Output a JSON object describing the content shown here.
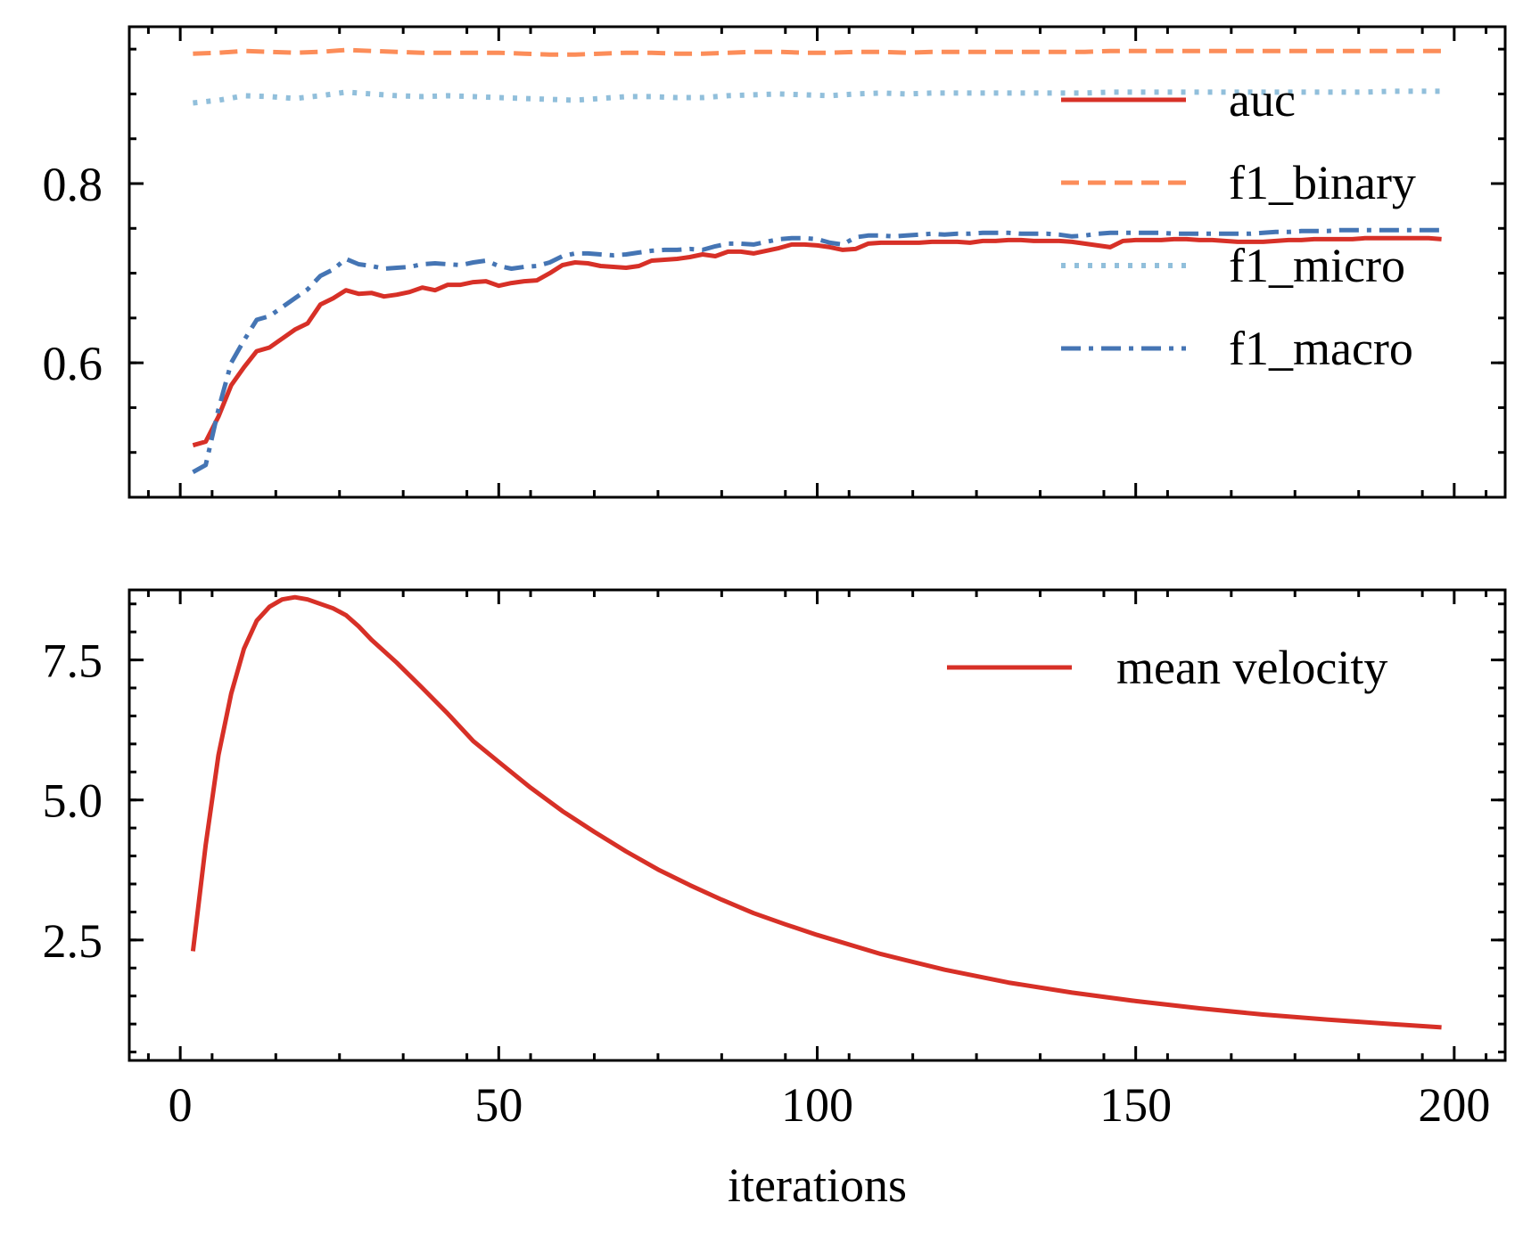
{
  "chart_data": [
    {
      "type": "line",
      "xlim": [
        -8,
        208
      ],
      "ylim": [
        0.45,
        0.975
      ],
      "yticks": [
        0.6,
        0.8
      ],
      "ytick_labels": [
        "0.6",
        "0.8"
      ],
      "xticks": [
        0,
        50,
        100,
        150,
        200
      ],
      "legend_position": "upper right",
      "grid": false,
      "series": [
        {
          "name": "auc",
          "color": "#d73027",
          "style": "solid",
          "x": [
            2,
            4,
            6,
            8,
            10,
            12,
            14,
            16,
            18,
            20,
            22,
            24,
            26,
            28,
            30,
            32,
            34,
            36,
            38,
            40,
            42,
            44,
            46,
            48,
            50,
            52,
            54,
            56,
            58,
            60,
            62,
            64,
            66,
            68,
            70,
            72,
            74,
            76,
            78,
            80,
            82,
            84,
            86,
            88,
            90,
            92,
            94,
            96,
            98,
            100,
            102,
            104,
            106,
            108,
            110,
            112,
            114,
            116,
            118,
            120,
            122,
            124,
            126,
            128,
            130,
            132,
            134,
            136,
            138,
            140,
            142,
            144,
            146,
            148,
            150,
            152,
            154,
            156,
            158,
            160,
            162,
            164,
            166,
            168,
            170,
            172,
            174,
            176,
            178,
            180,
            182,
            184,
            186,
            188,
            190,
            192,
            194,
            196,
            198
          ],
          "values": [
            0.508,
            0.512,
            0.54,
            0.575,
            0.595,
            0.613,
            0.617,
            0.627,
            0.637,
            0.644,
            0.665,
            0.672,
            0.681,
            0.677,
            0.678,
            0.674,
            0.676,
            0.679,
            0.684,
            0.681,
            0.687,
            0.687,
            0.69,
            0.691,
            0.686,
            0.689,
            0.691,
            0.692,
            0.7,
            0.709,
            0.712,
            0.711,
            0.708,
            0.707,
            0.706,
            0.708,
            0.714,
            0.715,
            0.716,
            0.718,
            0.721,
            0.719,
            0.724,
            0.724,
            0.722,
            0.725,
            0.728,
            0.732,
            0.732,
            0.731,
            0.729,
            0.726,
            0.727,
            0.733,
            0.734,
            0.734,
            0.734,
            0.734,
            0.735,
            0.735,
            0.735,
            0.734,
            0.736,
            0.736,
            0.737,
            0.737,
            0.736,
            0.736,
            0.736,
            0.735,
            0.733,
            0.731,
            0.729,
            0.736,
            0.737,
            0.737,
            0.737,
            0.738,
            0.738,
            0.737,
            0.737,
            0.736,
            0.735,
            0.735,
            0.735,
            0.736,
            0.737,
            0.737,
            0.738,
            0.738,
            0.738,
            0.738,
            0.739,
            0.739,
            0.739,
            0.739,
            0.739,
            0.739,
            0.738
          ]
        },
        {
          "name": "f1_binary",
          "color": "#fc8d59",
          "style": "dashed",
          "x": [
            2,
            6,
            10,
            14,
            18,
            22,
            26,
            30,
            34,
            38,
            42,
            46,
            50,
            54,
            58,
            62,
            66,
            70,
            74,
            78,
            82,
            86,
            90,
            94,
            98,
            102,
            106,
            110,
            114,
            118,
            122,
            126,
            130,
            134,
            138,
            142,
            146,
            150,
            154,
            158,
            162,
            166,
            170,
            174,
            178,
            182,
            186,
            190,
            194,
            198
          ],
          "values": [
            0.945,
            0.946,
            0.948,
            0.947,
            0.946,
            0.947,
            0.949,
            0.948,
            0.947,
            0.946,
            0.946,
            0.946,
            0.946,
            0.945,
            0.944,
            0.944,
            0.945,
            0.946,
            0.946,
            0.945,
            0.945,
            0.946,
            0.947,
            0.947,
            0.946,
            0.946,
            0.947,
            0.947,
            0.946,
            0.947,
            0.947,
            0.947,
            0.947,
            0.947,
            0.947,
            0.947,
            0.948,
            0.948,
            0.948,
            0.948,
            0.948,
            0.948,
            0.948,
            0.948,
            0.948,
            0.948,
            0.948,
            0.948,
            0.948,
            0.948
          ]
        },
        {
          "name": "f1_micro",
          "color": "#91bfdb",
          "style": "dotted",
          "x": [
            2,
            6,
            10,
            14,
            18,
            22,
            26,
            30,
            34,
            38,
            42,
            46,
            50,
            54,
            58,
            62,
            66,
            70,
            74,
            78,
            82,
            86,
            90,
            94,
            98,
            102,
            106,
            110,
            114,
            118,
            122,
            126,
            130,
            134,
            138,
            142,
            146,
            150,
            154,
            158,
            162,
            166,
            170,
            174,
            178,
            182,
            186,
            190,
            194,
            198
          ],
          "values": [
            0.89,
            0.893,
            0.898,
            0.897,
            0.895,
            0.898,
            0.902,
            0.9,
            0.898,
            0.897,
            0.898,
            0.897,
            0.896,
            0.895,
            0.894,
            0.893,
            0.895,
            0.897,
            0.897,
            0.896,
            0.896,
            0.898,
            0.899,
            0.9,
            0.899,
            0.898,
            0.9,
            0.901,
            0.9,
            0.901,
            0.901,
            0.901,
            0.901,
            0.901,
            0.901,
            0.901,
            0.902,
            0.902,
            0.902,
            0.902,
            0.902,
            0.902,
            0.902,
            0.902,
            0.902,
            0.902,
            0.902,
            0.903,
            0.903,
            0.903
          ]
        },
        {
          "name": "f1_macro",
          "color": "#4575b4",
          "style": "dashdot",
          "x": [
            2,
            4,
            6,
            8,
            10,
            12,
            14,
            16,
            18,
            20,
            22,
            24,
            26,
            28,
            30,
            32,
            34,
            36,
            38,
            40,
            42,
            44,
            46,
            48,
            50,
            52,
            54,
            56,
            58,
            60,
            62,
            64,
            66,
            68,
            70,
            72,
            74,
            76,
            78,
            80,
            82,
            84,
            86,
            88,
            90,
            92,
            94,
            96,
            98,
            100,
            102,
            104,
            106,
            108,
            110,
            112,
            114,
            116,
            118,
            120,
            122,
            124,
            126,
            128,
            130,
            132,
            134,
            136,
            138,
            140,
            142,
            144,
            146,
            148,
            150,
            152,
            154,
            156,
            158,
            160,
            162,
            164,
            166,
            168,
            170,
            172,
            174,
            176,
            178,
            180,
            182,
            184,
            186,
            188,
            190,
            194,
            198
          ],
          "values": [
            0.478,
            0.486,
            0.548,
            0.6,
            0.625,
            0.648,
            0.652,
            0.662,
            0.672,
            0.682,
            0.697,
            0.704,
            0.716,
            0.71,
            0.708,
            0.705,
            0.706,
            0.707,
            0.71,
            0.711,
            0.71,
            0.709,
            0.712,
            0.714,
            0.708,
            0.705,
            0.707,
            0.708,
            0.712,
            0.719,
            0.722,
            0.722,
            0.721,
            0.72,
            0.721,
            0.723,
            0.725,
            0.726,
            0.726,
            0.727,
            0.726,
            0.73,
            0.733,
            0.733,
            0.732,
            0.735,
            0.738,
            0.739,
            0.739,
            0.738,
            0.734,
            0.732,
            0.74,
            0.742,
            0.742,
            0.741,
            0.742,
            0.743,
            0.744,
            0.743,
            0.744,
            0.744,
            0.745,
            0.745,
            0.745,
            0.744,
            0.744,
            0.744,
            0.743,
            0.741,
            0.742,
            0.744,
            0.745,
            0.745,
            0.745,
            0.745,
            0.745,
            0.744,
            0.744,
            0.744,
            0.744,
            0.744,
            0.744,
            0.744,
            0.745,
            0.746,
            0.746,
            0.747,
            0.747,
            0.747,
            0.748,
            0.748,
            0.748,
            0.748,
            0.748,
            0.748,
            0.748
          ]
        }
      ]
    },
    {
      "type": "line",
      "xlim": [
        -8,
        208
      ],
      "ylim": [
        0.35,
        8.75
      ],
      "yticks": [
        2.5,
        5.0,
        7.5
      ],
      "ytick_labels": [
        "2.5",
        "5.0",
        "7.5"
      ],
      "xticks": [
        0,
        50,
        100,
        150,
        200
      ],
      "xtick_labels": [
        "0",
        "50",
        "100",
        "150",
        "200"
      ],
      "xlabel": "iterations",
      "legend_position": "upper right",
      "grid": false,
      "series": [
        {
          "name": "mean velocity",
          "color": "#d73027",
          "style": "solid",
          "x": [
            2,
            4,
            6,
            8,
            10,
            12,
            14,
            16,
            18,
            20,
            22,
            24,
            26,
            28,
            30,
            34,
            38,
            42,
            46,
            50,
            55,
            60,
            65,
            70,
            75,
            80,
            85,
            90,
            95,
            100,
            110,
            120,
            130,
            140,
            150,
            160,
            170,
            180,
            190,
            198
          ],
          "values": [
            2.3,
            4.2,
            5.8,
            6.9,
            7.7,
            8.2,
            8.45,
            8.58,
            8.62,
            8.58,
            8.5,
            8.42,
            8.3,
            8.1,
            7.86,
            7.45,
            7.0,
            6.54,
            6.05,
            5.68,
            5.22,
            4.8,
            4.43,
            4.08,
            3.76,
            3.48,
            3.22,
            2.98,
            2.78,
            2.59,
            2.25,
            1.97,
            1.74,
            1.56,
            1.41,
            1.28,
            1.17,
            1.08,
            1.0,
            0.94
          ]
        }
      ]
    }
  ]
}
